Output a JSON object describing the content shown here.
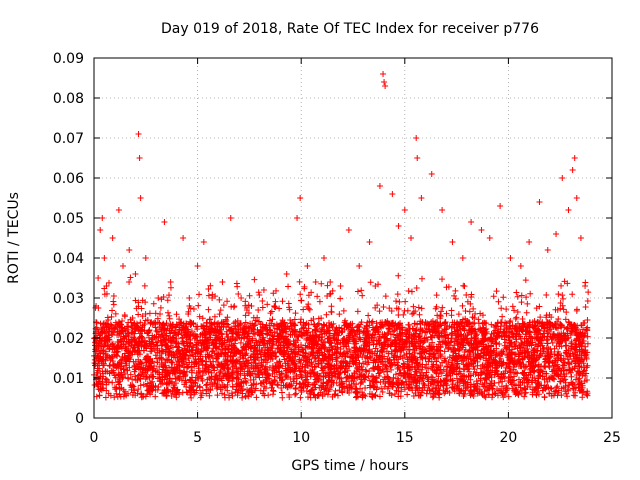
{
  "chart_data": {
    "type": "scatter",
    "title": "Day 019 of 2018, Rate Of TEC Index for receiver p776",
    "xlabel": "GPS time / hours",
    "ylabel": "ROTI / TECUs",
    "xlim": [
      0,
      25
    ],
    "ylim": [
      0,
      0.09
    ],
    "xticks": [
      0,
      5,
      10,
      15,
      20,
      25
    ],
    "xtick_labels": [
      "0",
      "5",
      "10",
      "15",
      "20",
      "25"
    ],
    "yticks": [
      0,
      0.01,
      0.02,
      0.03,
      0.04,
      0.05,
      0.06,
      0.07,
      0.08,
      0.09
    ],
    "ytick_labels": [
      "0",
      "0.01",
      "0.02",
      "0.03",
      "0.04",
      "0.05",
      "0.06",
      "0.07",
      "0.08",
      "0.09"
    ],
    "grid": true,
    "marker": "+",
    "color": "#ff0000",
    "series": [
      {
        "name": "ROTI",
        "x": [
          0.1,
          0.2,
          0.3,
          0.4,
          0.5,
          0.6,
          0.9,
          1.2,
          1.4,
          1.7,
          2.0,
          2.15,
          2.2,
          2.25,
          2.5,
          3.1,
          3.4,
          3.7,
          4.3,
          4.6,
          5.0,
          5.3,
          5.7,
          6.2,
          6.6,
          7.1,
          7.6,
          8.2,
          8.7,
          9.3,
          9.8,
          9.95,
          10.3,
          10.7,
          11.1,
          11.4,
          11.9,
          12.3,
          12.8,
          13.3,
          13.8,
          13.95,
          14.0,
          14.05,
          14.4,
          14.7,
          15.0,
          15.3,
          15.55,
          15.6,
          15.8,
          16.3,
          16.8,
          17.3,
          17.8,
          18.2,
          18.7,
          19.1,
          19.6,
          20.1,
          20.6,
          21.0,
          21.5,
          21.9,
          22.3,
          22.6,
          22.9,
          23.1,
          23.2,
          23.3,
          23.5,
          23.7
        ],
        "y": [
          0.028,
          0.035,
          0.047,
          0.05,
          0.04,
          0.033,
          0.045,
          0.052,
          0.038,
          0.042,
          0.036,
          0.071,
          0.065,
          0.055,
          0.04,
          0.03,
          0.049,
          0.034,
          0.045,
          0.03,
          0.038,
          0.044,
          0.03,
          0.034,
          0.05,
          0.03,
          0.028,
          0.032,
          0.028,
          0.036,
          0.05,
          0.055,
          0.038,
          0.034,
          0.04,
          0.034,
          0.033,
          0.047,
          0.038,
          0.044,
          0.058,
          0.086,
          0.084,
          0.083,
          0.056,
          0.048,
          0.052,
          0.045,
          0.07,
          0.065,
          0.055,
          0.061,
          0.052,
          0.044,
          0.04,
          0.049,
          0.047,
          0.045,
          0.053,
          0.04,
          0.038,
          0.044,
          0.054,
          0.042,
          0.046,
          0.06,
          0.052,
          0.062,
          0.065,
          0.055,
          0.045,
          0.033
        ]
      }
    ]
  }
}
